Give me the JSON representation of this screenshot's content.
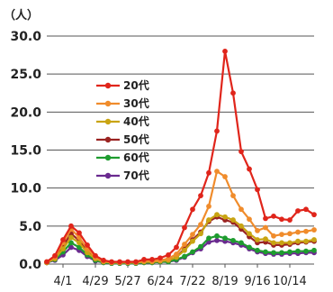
{
  "chart_data": {
    "type": "line",
    "unit_label": "（人）",
    "ylim": [
      0,
      30
    ],
    "yticks": [
      "30.0",
      "25.0",
      "20.0",
      "15.0",
      "10.0",
      "5.0",
      "0.0"
    ],
    "xtick_labels": [
      "4/1",
      "4/29",
      "5/27",
      "6/24",
      "7/22",
      "8/19",
      "9/16",
      "10/14"
    ],
    "grid": true,
    "legend": "upper-left",
    "series": [
      {
        "name": "20代",
        "color": "#e0251b",
        "values": [
          0.3,
          1.1,
          3.2,
          5.0,
          4.1,
          2.5,
          1.1,
          0.5,
          0.3,
          0.3,
          0.3,
          0.3,
          0.6,
          0.6,
          0.8,
          1.2,
          2.2,
          4.8,
          7.2,
          9.0,
          12.0,
          17.5,
          28.0,
          22.5,
          14.8,
          12.5,
          9.8,
          6.0,
          6.3,
          5.9,
          5.8,
          7.0,
          7.2,
          6.5
        ]
      },
      {
        "name": "30代",
        "color": "#f08c2c",
        "values": [
          0.3,
          0.9,
          2.8,
          4.6,
          3.5,
          2.0,
          0.9,
          0.4,
          0.2,
          0.2,
          0.2,
          0.2,
          0.4,
          0.4,
          0.5,
          0.7,
          1.3,
          2.6,
          3.9,
          5.2,
          7.6,
          12.2,
          11.5,
          9.0,
          7.2,
          5.9,
          4.4,
          4.8,
          3.7,
          3.9,
          4.0,
          4.2,
          4.3,
          4.5
        ]
      },
      {
        "name": "40代",
        "color": "#c9a412",
        "values": [
          0.2,
          0.7,
          2.0,
          3.5,
          2.8,
          1.5,
          0.7,
          0.3,
          0.2,
          0.2,
          0.2,
          0.2,
          0.3,
          0.3,
          0.4,
          0.5,
          0.9,
          1.8,
          3.0,
          4.0,
          5.8,
          6.5,
          6.2,
          5.8,
          5.0,
          4.0,
          3.2,
          3.3,
          2.8,
          2.8,
          2.8,
          3.0,
          3.0,
          3.2
        ]
      },
      {
        "name": "50代",
        "color": "#9b2422",
        "values": [
          0.2,
          0.8,
          2.4,
          4.0,
          3.1,
          1.8,
          0.7,
          0.3,
          0.2,
          0.2,
          0.2,
          0.2,
          0.3,
          0.3,
          0.4,
          0.5,
          0.9,
          2.0,
          3.2,
          4.2,
          5.6,
          6.2,
          5.8,
          5.5,
          4.6,
          3.6,
          2.8,
          2.9,
          2.5,
          2.5,
          2.6,
          2.8,
          2.9,
          3.0
        ]
      },
      {
        "name": "60代",
        "color": "#1e9c2f",
        "values": [
          0.2,
          0.6,
          1.6,
          2.8,
          2.2,
          1.2,
          0.5,
          0.2,
          0.1,
          0.1,
          0.1,
          0.1,
          0.2,
          0.2,
          0.3,
          0.3,
          0.6,
          1.0,
          1.6,
          2.3,
          3.4,
          3.7,
          3.4,
          3.1,
          2.8,
          2.2,
          1.8,
          1.6,
          1.5,
          1.5,
          1.6,
          1.7,
          1.7,
          1.8
        ]
      },
      {
        "name": "70代",
        "color": "#6a2a8f",
        "values": [
          0.2,
          0.5,
          1.2,
          2.2,
          1.8,
          1.0,
          0.4,
          0.2,
          0.1,
          0.1,
          0.1,
          0.1,
          0.2,
          0.2,
          0.3,
          0.3,
          0.5,
          0.9,
          1.5,
          2.0,
          2.9,
          3.1,
          3.0,
          2.8,
          2.5,
          2.0,
          1.6,
          1.4,
          1.3,
          1.3,
          1.4,
          1.4,
          1.5,
          1.5
        ]
      }
    ]
  }
}
